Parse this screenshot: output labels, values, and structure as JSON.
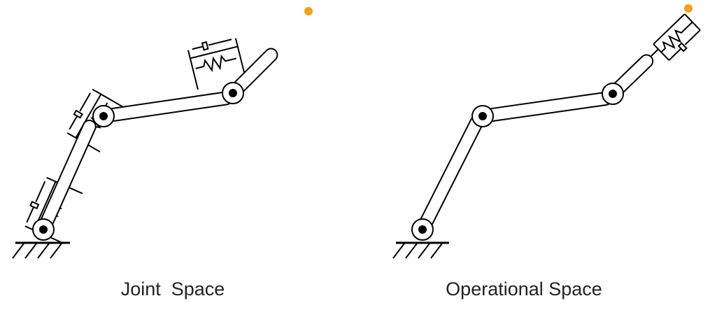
{
  "captions": {
    "left": "Joint  Space",
    "right": "Operational Space"
  },
  "colors": {
    "stroke": "#000000",
    "target_dot": "#f5a01a",
    "background": "#ffffff"
  }
}
